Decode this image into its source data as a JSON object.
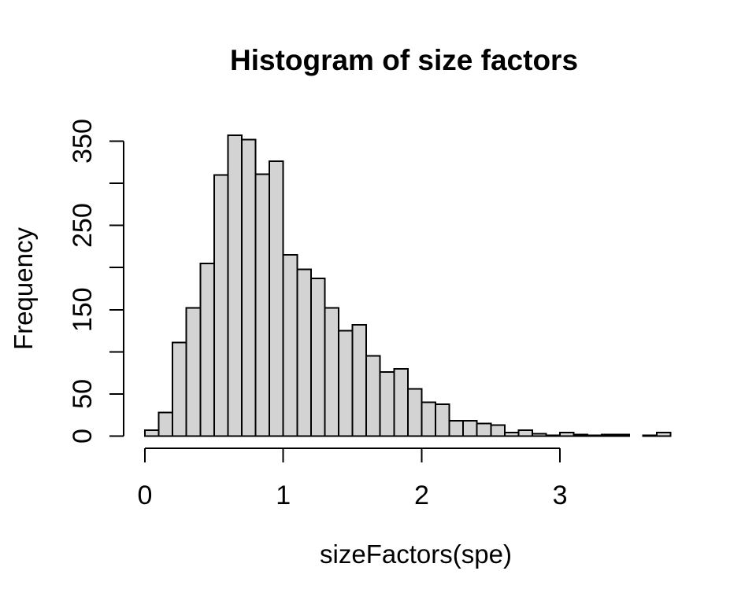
{
  "chart_data": {
    "type": "bar",
    "subtype": "histogram",
    "title": "Histogram of size factors",
    "xlabel": "sizeFactors(spe)",
    "ylabel": "Frequency",
    "bin_start": 0,
    "bin_width": 0.1,
    "counts": [
      7,
      28,
      111,
      152,
      205,
      310,
      357,
      352,
      311,
      326,
      215,
      198,
      187,
      152,
      125,
      132,
      95,
      76,
      80,
      56,
      40,
      38,
      18,
      18,
      15,
      13,
      4,
      7,
      3,
      1,
      4,
      2,
      1,
      2,
      2,
      0,
      1,
      4
    ],
    "x_ticks": [
      {
        "value": 0,
        "label": "0"
      },
      {
        "value": 1,
        "label": "1"
      },
      {
        "value": 2,
        "label": "2"
      },
      {
        "value": 3,
        "label": "3"
      }
    ],
    "y_ticks": [
      {
        "value": 0,
        "label": "0"
      },
      {
        "value": 50,
        "label": "50"
      },
      {
        "value": 100,
        "label": ""
      },
      {
        "value": 150,
        "label": "150"
      },
      {
        "value": 200,
        "label": ""
      },
      {
        "value": 250,
        "label": "250"
      },
      {
        "value": 300,
        "label": ""
      },
      {
        "value": 350,
        "label": "350"
      }
    ],
    "xlim": [
      0,
      3.8
    ],
    "ylim": [
      0,
      350
    ],
    "grid": false,
    "legend": "none",
    "colors": {
      "bar_fill": "#d3d3d3",
      "bar_border": "#000000",
      "axis": "#000000",
      "text": "#000000",
      "background": "#ffffff"
    }
  }
}
